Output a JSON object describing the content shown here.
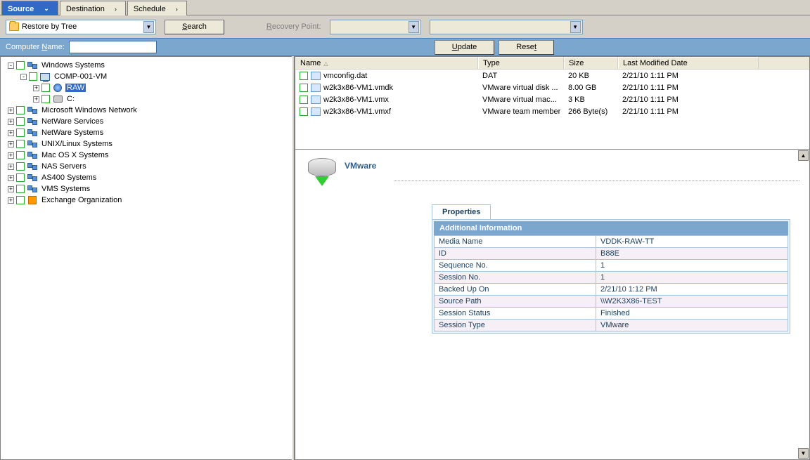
{
  "tabs": [
    {
      "label": "Source",
      "active": true
    },
    {
      "label": "Destination",
      "active": false
    },
    {
      "label": "Schedule",
      "active": false
    }
  ],
  "toolbar": {
    "restore_mode": "Restore by Tree",
    "search_label": "Search",
    "recovery_point_label": "Recovery Point:",
    "computer_name_label": "Computer Name:",
    "computer_name_value": "",
    "update_label": "Update",
    "reset_label": "Reset"
  },
  "tree": [
    {
      "depth": 0,
      "pm": "-",
      "icon": "net",
      "label": "Windows Systems"
    },
    {
      "depth": 1,
      "pm": "-",
      "icon": "comp",
      "label": "COMP-001-VM"
    },
    {
      "depth": 2,
      "pm": "+",
      "icon": "globe",
      "label": "RAW",
      "selected": true
    },
    {
      "depth": 2,
      "pm": "+",
      "icon": "disk",
      "label": "C:"
    },
    {
      "depth": 0,
      "pm": "+",
      "icon": "net",
      "label": "Microsoft Windows Network"
    },
    {
      "depth": 0,
      "pm": "+",
      "icon": "net",
      "label": "NetWare Services"
    },
    {
      "depth": 0,
      "pm": "+",
      "icon": "net",
      "label": "NetWare Systems"
    },
    {
      "depth": 0,
      "pm": "+",
      "icon": "net",
      "label": "UNIX/Linux Systems"
    },
    {
      "depth": 0,
      "pm": "+",
      "icon": "net",
      "label": "Mac OS X Systems"
    },
    {
      "depth": 0,
      "pm": "+",
      "icon": "net",
      "label": "NAS Servers"
    },
    {
      "depth": 0,
      "pm": "+",
      "icon": "net",
      "label": "AS400 Systems"
    },
    {
      "depth": 0,
      "pm": "+",
      "icon": "net",
      "label": "VMS Systems"
    },
    {
      "depth": 0,
      "pm": "+",
      "icon": "exch",
      "label": "Exchange Organization"
    }
  ],
  "file_columns": {
    "name": "Name",
    "type": "Type",
    "size": "Size",
    "date": "Last Modified Date"
  },
  "files": [
    {
      "name": "vmconfig.dat",
      "type": "DAT",
      "size": "20 KB",
      "date": "2/21/10  1:11 PM"
    },
    {
      "name": "w2k3x86-VM1.vmdk",
      "type": "VMware virtual disk ...",
      "size": "8.00 GB",
      "date": "2/21/10  1:11 PM"
    },
    {
      "name": "w2k3x86-VM1.vmx",
      "type": "VMware virtual mac...",
      "size": "3 KB",
      "date": "2/21/10  1:11 PM"
    },
    {
      "name": "w2k3x86-VM1.vmxf",
      "type": "VMware team member",
      "size": "266 Byte(s)",
      "date": "2/21/10  1:11 PM"
    }
  ],
  "detail": {
    "heading": "VMware",
    "properties_tab": "Properties",
    "section_title": "Additional Information",
    "rows": [
      {
        "k": "Media Name",
        "v": "VDDK-RAW-TT"
      },
      {
        "k": "ID",
        "v": "B88E"
      },
      {
        "k": "Sequence No.",
        "v": "1"
      },
      {
        "k": "Session No.",
        "v": "1"
      },
      {
        "k": "Backed Up On",
        "v": "2/21/10 1:12 PM"
      },
      {
        "k": "Source Path",
        "v": "\\\\W2K3X86-TEST"
      },
      {
        "k": "Session Status",
        "v": "Finished"
      },
      {
        "k": "Session Type",
        "v": "VMware"
      }
    ]
  },
  "colors": {
    "accent": "#316ac5",
    "toolbar_blue": "#7ba7ce",
    "panel_border": "#a8c5e0",
    "heading_text": "#2c5e8e"
  }
}
